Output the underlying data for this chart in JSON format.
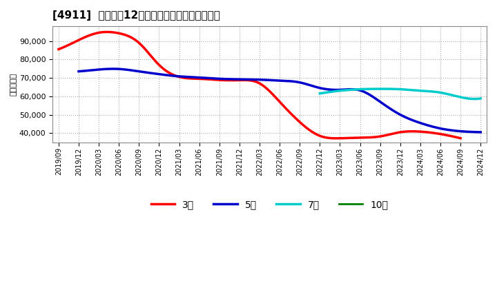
{
  "title": "[4911]  経常利益12か月移動合計の平均値の推移",
  "ylabel": "（百万円）",
  "background_color": "#ffffff",
  "grid_color": "#aaaaaa",
  "ylim": [
    35000,
    98000
  ],
  "yticks": [
    40000,
    50000,
    60000,
    70000,
    80000,
    90000
  ],
  "x_labels": [
    "2019/09",
    "2019/12",
    "2020/03",
    "2020/06",
    "2020/09",
    "2020/12",
    "2021/03",
    "2021/06",
    "2021/09",
    "2021/12",
    "2022/03",
    "2022/06",
    "2022/09",
    "2022/12",
    "2023/03",
    "2023/06",
    "2023/09",
    "2023/12",
    "2024/03",
    "2024/06",
    "2024/09",
    "2024/12"
  ],
  "series": [
    {
      "label": "3年",
      "color": "#ff0000",
      "linewidth": 2.5,
      "x_idx": [
        0,
        1,
        2,
        3,
        4,
        5,
        6,
        7,
        8,
        9,
        10,
        11,
        12,
        13,
        14,
        15,
        16,
        17,
        18,
        19,
        20
      ],
      "y": [
        85500,
        90500,
        94500,
        94200,
        89000,
        77000,
        70500,
        69500,
        68800,
        68700,
        67000,
        57000,
        46000,
        38500,
        37200,
        37500,
        38200,
        40500,
        40800,
        39500,
        37200
      ]
    },
    {
      "label": "5年",
      "color": "#0000cc",
      "linewidth": 2.5,
      "x_idx": [
        1,
        2,
        3,
        4,
        5,
        6,
        7,
        8,
        9,
        10,
        11,
        12,
        13,
        14,
        15,
        16,
        17,
        18,
        19,
        20,
        21
      ],
      "y": [
        73500,
        74500,
        74800,
        73500,
        72000,
        70800,
        70200,
        69500,
        69200,
        69000,
        68500,
        67500,
        64500,
        63500,
        63200,
        57000,
        50000,
        45500,
        42500,
        41000,
        40500
      ]
    },
    {
      "label": "7年",
      "color": "#00cccc",
      "linewidth": 2.5,
      "x_idx": [
        13,
        14,
        15,
        16,
        17,
        18,
        19,
        20,
        21
      ],
      "y": [
        61500,
        63000,
        63800,
        64000,
        63800,
        63000,
        62000,
        59500,
        58800
      ]
    },
    {
      "label": "10年",
      "color": "#008000",
      "linewidth": 2.0,
      "x_idx": [],
      "y": []
    }
  ]
}
